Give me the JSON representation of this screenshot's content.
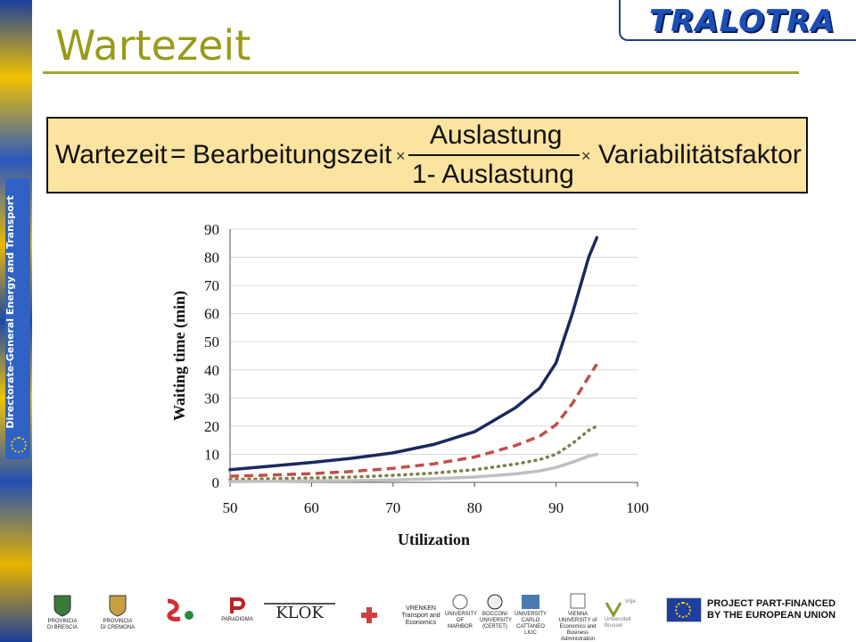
{
  "sidebar": {
    "dg_label": "Directorate-General Energy and Transport"
  },
  "header": {
    "logo_text": "TRALOTRA",
    "title": "Wartezeit"
  },
  "formula": {
    "lhs": "Wartezeit",
    "equals": "=",
    "term1": "Bearbeitungszeit",
    "times": "×",
    "numerator": "Auslastung",
    "denominator": "1- Auslastung",
    "term3": "Variabilitätsfaktor"
  },
  "chart_data": {
    "type": "line",
    "xlabel": "Utilization",
    "ylabel": "Waiting time (min)",
    "xlim": [
      50,
      100
    ],
    "ylim": [
      0,
      90
    ],
    "x_ticks": [
      50,
      60,
      70,
      80,
      90,
      100
    ],
    "y_ticks": [
      0,
      10,
      20,
      30,
      40,
      50,
      60,
      70,
      80,
      90
    ],
    "grid": true,
    "series": [
      {
        "color": "#1a2a5e",
        "style": "solid",
        "x": [
          50,
          55,
          60,
          65,
          70,
          75,
          80,
          85,
          88,
          90,
          92,
          94,
          95
        ],
        "y": [
          4.5,
          5.8,
          7.1,
          8.6,
          10.5,
          13.5,
          18.0,
          26.5,
          33.5,
          42.5,
          60.0,
          80.0,
          87.0
        ]
      },
      {
        "color": "#c0504d",
        "style": "dashed",
        "x": [
          50,
          55,
          60,
          65,
          70,
          75,
          80,
          85,
          88,
          90,
          92,
          94,
          95
        ],
        "y": [
          2.2,
          2.6,
          3.1,
          3.9,
          5.0,
          6.6,
          9.0,
          13.1,
          16.4,
          20.5,
          28.0,
          37.5,
          42.0
        ]
      },
      {
        "color": "#7f7f4a",
        "style": "dotted",
        "x": [
          50,
          55,
          60,
          65,
          70,
          75,
          80,
          85,
          88,
          90,
          92,
          94,
          95
        ],
        "y": [
          1.0,
          1.3,
          1.6,
          1.9,
          2.5,
          3.3,
          4.5,
          6.5,
          8.1,
          10.0,
          13.8,
          18.5,
          20.0
        ]
      },
      {
        "color": "#c0c0c0",
        "style": "solid",
        "x": [
          50,
          55,
          60,
          65,
          70,
          75,
          80,
          85,
          88,
          90,
          92,
          94,
          95
        ],
        "y": [
          0.3,
          0.4,
          0.5,
          0.6,
          0.9,
          1.3,
          1.9,
          3.0,
          4.1,
          5.3,
          7.2,
          9.3,
          10.0
        ]
      }
    ]
  },
  "footer": {
    "logos": [
      {
        "name": "provincia-brescia",
        "label": "PROVINCIA DI BRESCIA"
      },
      {
        "name": "provincia-cremona",
        "label": "PROVINCIA DI CREMONA"
      },
      {
        "name": "provincia-emilia",
        "label": ""
      },
      {
        "name": "paradigma",
        "label": "PARADIGMA"
      },
      {
        "name": "klok",
        "label": "KLOK"
      },
      {
        "name": "vrenken",
        "label": "VRENKEN Transport and Economics"
      },
      {
        "name": "univ-maribor",
        "label": "UNIVERSITY OF MARIBOR"
      },
      {
        "name": "bocconi",
        "label": "BOCCONI UNIVERSITY (CERTET)"
      },
      {
        "name": "liuc",
        "label": "UNIVERSITY CARLO CATTANEO LIUC"
      },
      {
        "name": "vienna-univ",
        "label": "VIENNA UNIVERSITY of Economics and Business Administration"
      },
      {
        "name": "vub",
        "label": "Vrije Universiteit Brussel"
      }
    ],
    "eu_line1": "PROJECT PART-FINANCED",
    "eu_line2": "BY THE EUROPEAN UNION"
  }
}
